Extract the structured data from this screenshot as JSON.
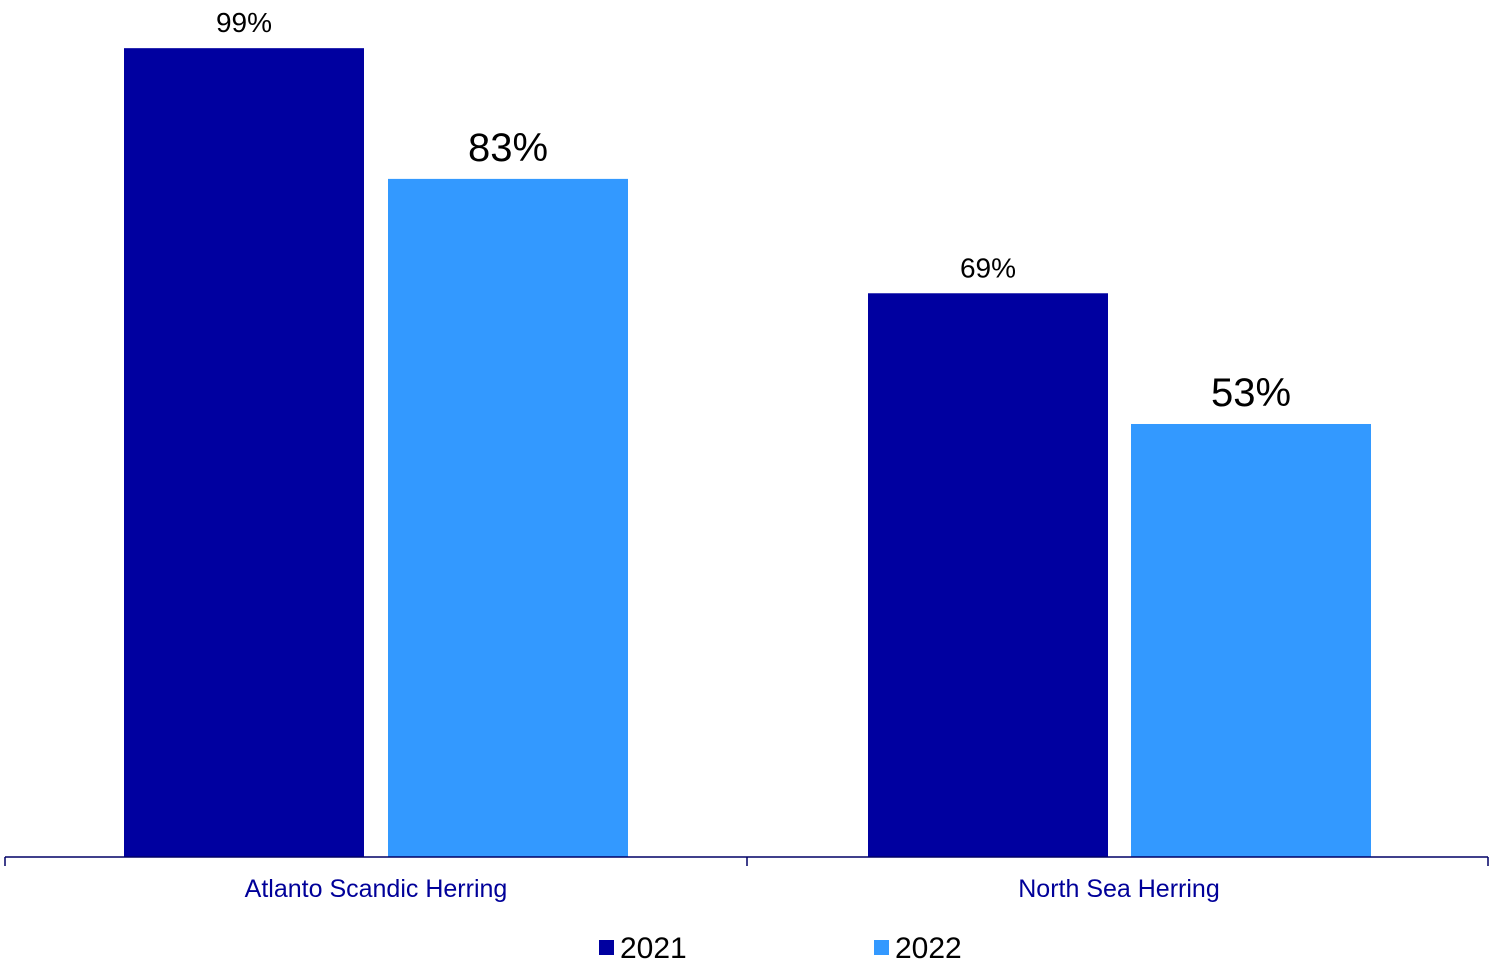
{
  "chart_data": {
    "type": "bar",
    "categories": [
      "Atlanto Scandic Herring",
      "North Sea Herring"
    ],
    "series": [
      {
        "name": "2021",
        "values": [
          99,
          69
        ],
        "labels": [
          "99%",
          "69%"
        ],
        "color": "#0000A0"
      },
      {
        "name": "2022",
        "values": [
          83,
          53
        ],
        "labels": [
          "83%",
          "53%"
        ],
        "color": "#3399FF"
      }
    ],
    "ylim": [
      0,
      100
    ],
    "axis_color": "#000066",
    "category_label_color": "#000099",
    "grid": false,
    "legend_position": "bottom"
  }
}
